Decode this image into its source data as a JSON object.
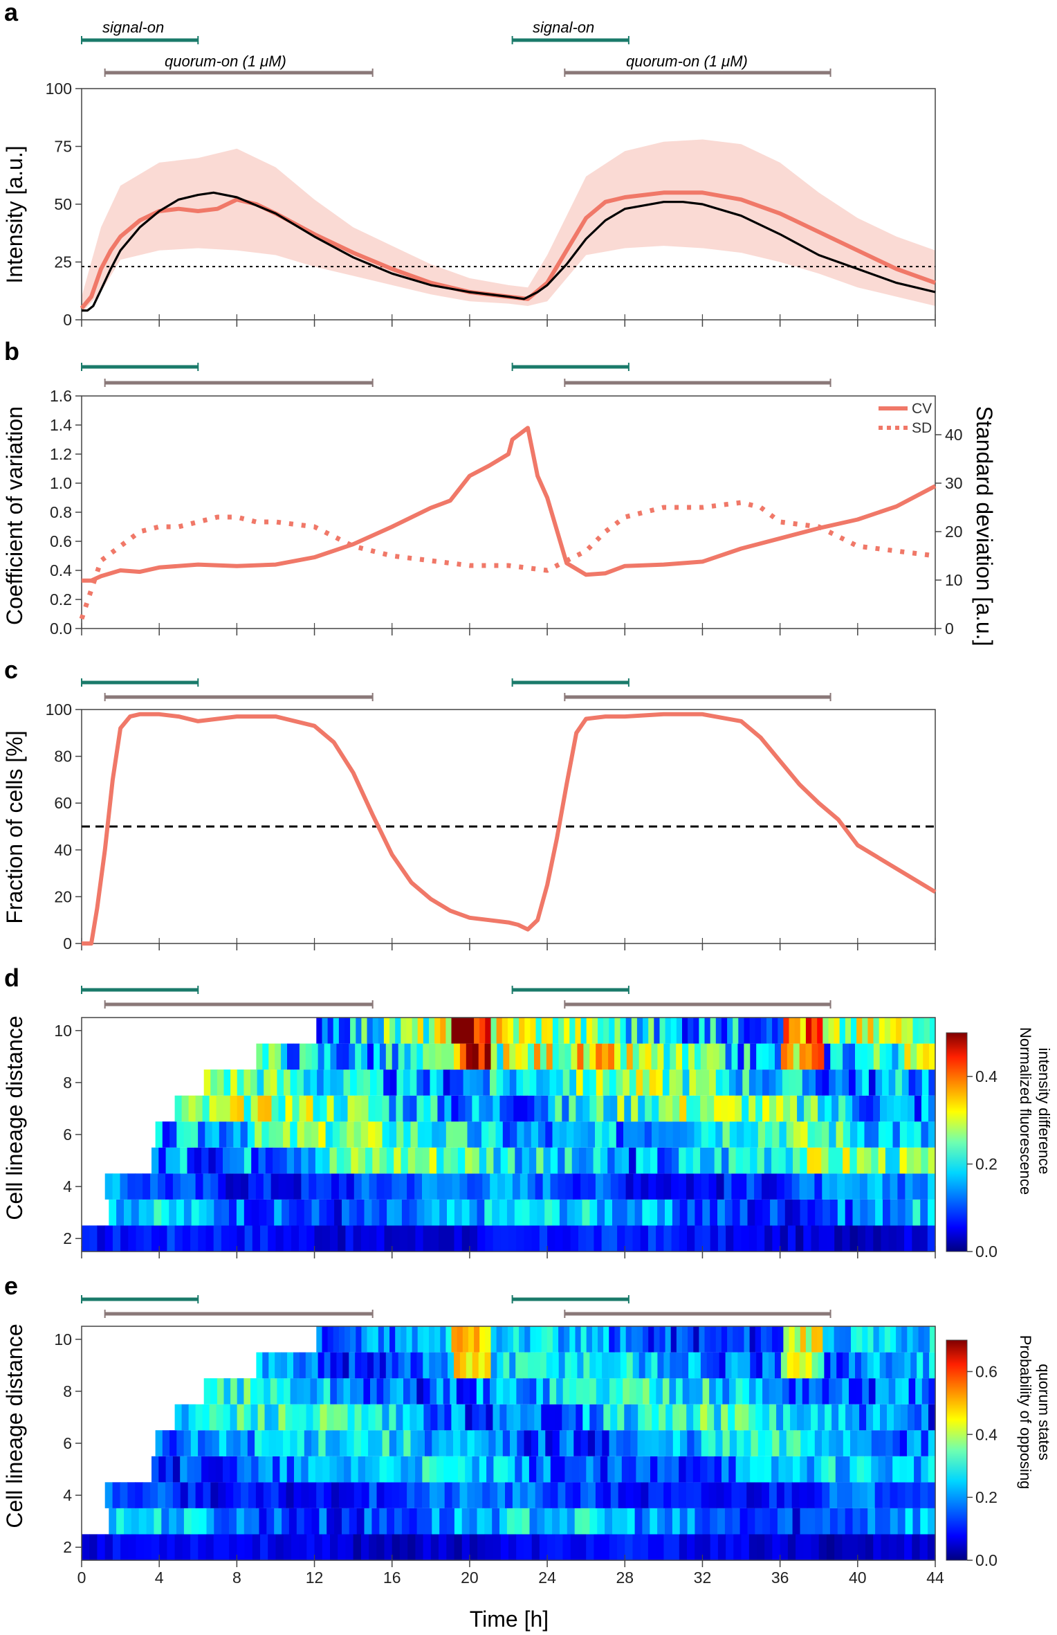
{
  "figure": {
    "x_axis": {
      "label": "Time [h]",
      "ticks": [
        "0",
        "4",
        "8",
        "12",
        "16",
        "20",
        "24",
        "28",
        "32",
        "36",
        "40",
        "44"
      ],
      "range": [
        0,
        44
      ]
    },
    "colors": {
      "signal_bar": "#1a7a6a",
      "quorum_bar": "#8a7878",
      "curve": "#f07868",
      "band": "#f9d4cc",
      "model": "#000000"
    },
    "annotation_bars": {
      "signal_on": [
        {
          "start": 0,
          "end": 6,
          "label": "signal-on"
        },
        {
          "start": 22.2,
          "end": 28.2,
          "label": "signal-on"
        }
      ],
      "quorum_on": [
        {
          "start": 1.2,
          "end": 15,
          "label": "quorum-on (1 μM)"
        },
        {
          "start": 24.9,
          "end": 38.6,
          "label": "quorum-on (1 μM)"
        }
      ]
    }
  },
  "chart_data": [
    {
      "panel": "a",
      "type": "line",
      "ylabel": "Intensity [a.u.]",
      "ylim": [
        0,
        100
      ],
      "yticks": [
        "0",
        "25",
        "50",
        "75",
        "100"
      ],
      "threshold": 23,
      "series": [
        {
          "name": "mean intensity",
          "x": [
            0,
            0.5,
            1,
            1.5,
            2,
            3,
            4,
            5,
            6,
            7,
            8,
            9,
            10,
            12,
            14,
            16,
            18,
            20,
            22,
            23,
            24,
            25,
            26,
            27,
            28,
            30,
            32,
            34,
            36,
            38,
            40,
            42,
            44
          ],
          "y": [
            5,
            10,
            22,
            30,
            36,
            43,
            47,
            48,
            47,
            48,
            52,
            50,
            46,
            37,
            29,
            22,
            16,
            12,
            10,
            9,
            16,
            30,
            44,
            51,
            53,
            55,
            55,
            52,
            46,
            38,
            30,
            22,
            16
          ]
        },
        {
          "name": "model",
          "x": [
            0,
            0.3,
            0.6,
            1,
            1.5,
            2,
            3,
            4,
            5,
            6,
            6.8,
            8,
            10,
            12,
            14,
            16,
            18,
            20,
            22,
            22.8,
            23.5,
            24,
            25,
            26,
            27,
            28,
            30,
            31,
            32,
            34,
            36,
            38,
            40,
            42,
            44
          ],
          "y": [
            4,
            4,
            6,
            13,
            22,
            30,
            40,
            47,
            52,
            54,
            55,
            53,
            46,
            36,
            27,
            20,
            15,
            12,
            10,
            9,
            12,
            15,
            24,
            35,
            43,
            48,
            51,
            51,
            50,
            45,
            37,
            28,
            22,
            16,
            12
          ]
        },
        {
          "name": "upper band",
          "x": [
            0,
            1,
            2,
            4,
            6,
            8,
            10,
            12,
            14,
            16,
            18,
            20,
            22,
            23,
            24,
            26,
            28,
            30,
            32,
            34,
            36,
            38,
            40,
            42,
            44
          ],
          "y": [
            10,
            40,
            58,
            68,
            70,
            74,
            66,
            52,
            40,
            32,
            24,
            18,
            15,
            14,
            28,
            62,
            73,
            77,
            78,
            76,
            68,
            55,
            44,
            36,
            30
          ]
        },
        {
          "name": "lower band",
          "x": [
            0,
            1,
            2,
            4,
            6,
            8,
            10,
            12,
            14,
            16,
            18,
            20,
            22,
            23,
            24,
            26,
            28,
            30,
            32,
            34,
            36,
            38,
            40,
            42,
            44
          ],
          "y": [
            3,
            12,
            26,
            30,
            31,
            30,
            28,
            23,
            19,
            15,
            11,
            8,
            7,
            6,
            8,
            28,
            31,
            32,
            31,
            29,
            25,
            20,
            14,
            10,
            6
          ]
        }
      ]
    },
    {
      "panel": "b",
      "type": "line",
      "ylabel": "Coefficient of variation",
      "ylim": [
        0,
        1.6
      ],
      "yticks": [
        "0.0",
        "0.2",
        "0.4",
        "0.6",
        "0.8",
        "1.0",
        "1.2",
        "1.4",
        "1.6"
      ],
      "y2label": "Standard deviation [a.u.]",
      "y2lim": [
        0,
        48
      ],
      "y2ticks": [
        "0",
        "10",
        "20",
        "30",
        "40"
      ],
      "legend": [
        "CV",
        "SD"
      ],
      "series": [
        {
          "name": "CV",
          "x": [
            0,
            0.5,
            1,
            2,
            3,
            4,
            6,
            8,
            10,
            12,
            14,
            16,
            18,
            19,
            20,
            21,
            22,
            22.2,
            23,
            23.5,
            24,
            25,
            26,
            27,
            28,
            30,
            32,
            34,
            36,
            38,
            40,
            42,
            44
          ],
          "y": [
            0.33,
            0.33,
            0.36,
            0.4,
            0.39,
            0.42,
            0.44,
            0.43,
            0.44,
            0.49,
            0.58,
            0.7,
            0.83,
            0.88,
            1.05,
            1.12,
            1.2,
            1.3,
            1.38,
            1.05,
            0.9,
            0.45,
            0.37,
            0.38,
            0.43,
            0.44,
            0.46,
            0.55,
            0.62,
            0.69,
            0.75,
            0.84,
            0.98
          ]
        },
        {
          "name": "SD",
          "x": [
            0,
            0.5,
            1,
            2,
            3,
            4,
            5,
            6,
            7,
            8,
            9,
            10,
            12,
            14,
            16,
            18,
            20,
            22,
            24,
            25,
            26,
            27,
            28,
            29,
            30,
            32,
            34,
            35,
            36,
            38,
            40,
            42,
            44
          ],
          "y": [
            2,
            8,
            14,
            17,
            20,
            21,
            21,
            22,
            23,
            23,
            22,
            22,
            21,
            17,
            15,
            14,
            13,
            13,
            12,
            14,
            16,
            20,
            23,
            24,
            25,
            25,
            26,
            25,
            22,
            21,
            17,
            16,
            15
          ]
        }
      ]
    },
    {
      "panel": "c",
      "type": "line",
      "ylabel": "Fraction of cells [%]",
      "ylim": [
        0,
        100
      ],
      "yticks": [
        "0",
        "20",
        "40",
        "60",
        "80",
        "100"
      ],
      "threshold": 50,
      "series": [
        {
          "name": "fraction",
          "x": [
            0,
            0.5,
            0.8,
            1.2,
            1.6,
            2,
            2.5,
            3,
            4,
            5,
            6,
            8,
            10,
            12,
            13,
            14,
            15,
            16,
            17,
            18,
            19,
            20,
            21,
            22,
            22.5,
            23,
            23.5,
            24,
            24.5,
            25,
            25.5,
            26,
            27,
            28,
            30,
            32,
            34,
            35,
            36,
            37,
            38,
            39,
            40,
            42,
            44
          ],
          "y": [
            0,
            0,
            15,
            40,
            70,
            92,
            97,
            98,
            98,
            97,
            95,
            97,
            97,
            93,
            86,
            73,
            55,
            38,
            26,
            19,
            14,
            11,
            10,
            9,
            8,
            6,
            10,
            25,
            45,
            68,
            90,
            96,
            97,
            97,
            98,
            98,
            95,
            88,
            78,
            68,
            60,
            53,
            42,
            32,
            22
          ]
        }
      ]
    },
    {
      "panel": "d",
      "type": "heatmap",
      "ylabel": "Cell lineage distance",
      "yticks": [
        "2",
        "4",
        "6",
        "8",
        "10"
      ],
      "colorbar": {
        "label_lines": [
          "Normalized fluorescence",
          "intensity difference"
        ],
        "ticks": [
          "0.0",
          "0.2",
          "0.4"
        ],
        "range": [
          0,
          0.5
        ]
      },
      "rows": [
        {
          "distance": 2,
          "start": 0,
          "mean": 0.06
        },
        {
          "distance": 3,
          "start": 1.4,
          "mean": 0.13
        },
        {
          "distance": 4,
          "start": 1.2,
          "mean": 0.1
        },
        {
          "distance": 5,
          "start": 3.6,
          "mean": 0.19
        },
        {
          "distance": 6,
          "start": 3.8,
          "mean": 0.18
        },
        {
          "distance": 7,
          "start": 4.8,
          "mean": 0.2
        },
        {
          "distance": 8,
          "start": 6.3,
          "mean": 0.19
        },
        {
          "distance": 9,
          "start": 9,
          "mean": 0.22
        },
        {
          "distance": 10,
          "start": 12.1,
          "mean": 0.22
        }
      ]
    },
    {
      "panel": "e",
      "type": "heatmap",
      "ylabel": "Cell lineage distance",
      "yticks": [
        "2",
        "4",
        "6",
        "8",
        "10"
      ],
      "colorbar": {
        "label_lines": [
          "Probability of opposing",
          "quorum states"
        ],
        "ticks": [
          "0.0",
          "0.2",
          "0.4",
          "0.6"
        ],
        "range": [
          0,
          0.7
        ]
      },
      "rows": [
        {
          "distance": 2,
          "start": 0,
          "mean": 0.07
        },
        {
          "distance": 3,
          "start": 1.4,
          "mean": 0.18
        },
        {
          "distance": 4,
          "start": 1.2,
          "mean": 0.12
        },
        {
          "distance": 5,
          "start": 3.6,
          "mean": 0.18
        },
        {
          "distance": 6,
          "start": 3.8,
          "mean": 0.2
        },
        {
          "distance": 7,
          "start": 4.8,
          "mean": 0.22
        },
        {
          "distance": 8,
          "start": 6.3,
          "mean": 0.22
        },
        {
          "distance": 9,
          "start": 9,
          "mean": 0.2
        },
        {
          "distance": 10,
          "start": 12.1,
          "mean": 0.18
        }
      ]
    }
  ]
}
